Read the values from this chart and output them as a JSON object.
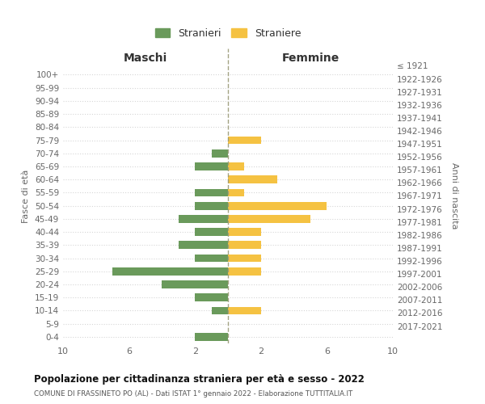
{
  "age_groups": [
    "0-4",
    "5-9",
    "10-14",
    "15-19",
    "20-24",
    "25-29",
    "30-34",
    "35-39",
    "40-44",
    "45-49",
    "50-54",
    "55-59",
    "60-64",
    "65-69",
    "70-74",
    "75-79",
    "80-84",
    "85-89",
    "90-94",
    "95-99",
    "100+"
  ],
  "birth_years": [
    "2017-2021",
    "2012-2016",
    "2007-2011",
    "2002-2006",
    "1997-2001",
    "1992-1996",
    "1987-1991",
    "1982-1986",
    "1977-1981",
    "1972-1976",
    "1967-1971",
    "1962-1966",
    "1957-1961",
    "1952-1956",
    "1947-1951",
    "1942-1946",
    "1937-1941",
    "1932-1936",
    "1927-1931",
    "1922-1926",
    "≤ 1921"
  ],
  "maschi": [
    2,
    0,
    1,
    2,
    4,
    7,
    2,
    3,
    2,
    3,
    2,
    2,
    0,
    2,
    1,
    0,
    0,
    0,
    0,
    0,
    0
  ],
  "femmine": [
    0,
    0,
    2,
    0,
    0,
    2,
    2,
    2,
    2,
    5,
    6,
    1,
    3,
    1,
    0,
    2,
    0,
    0,
    0,
    0,
    0
  ],
  "color_maschi": "#6a9a5b",
  "color_femmine": "#f5c242",
  "title": "Popolazione per cittadinanza straniera per età e sesso - 2022",
  "subtitle": "COMUNE DI FRASSINETO PO (AL) - Dati ISTAT 1° gennaio 2022 - Elaborazione TUTTITALIA.IT",
  "xlabel_left": "Maschi",
  "xlabel_right": "Femmine",
  "ylabel_left": "Fasce di età",
  "ylabel_right": "Anni di nascita",
  "legend_maschi": "Stranieri",
  "legend_femmine": "Straniere",
  "xlim": 10,
  "background_color": "#ffffff",
  "grid_color": "#cccccc"
}
